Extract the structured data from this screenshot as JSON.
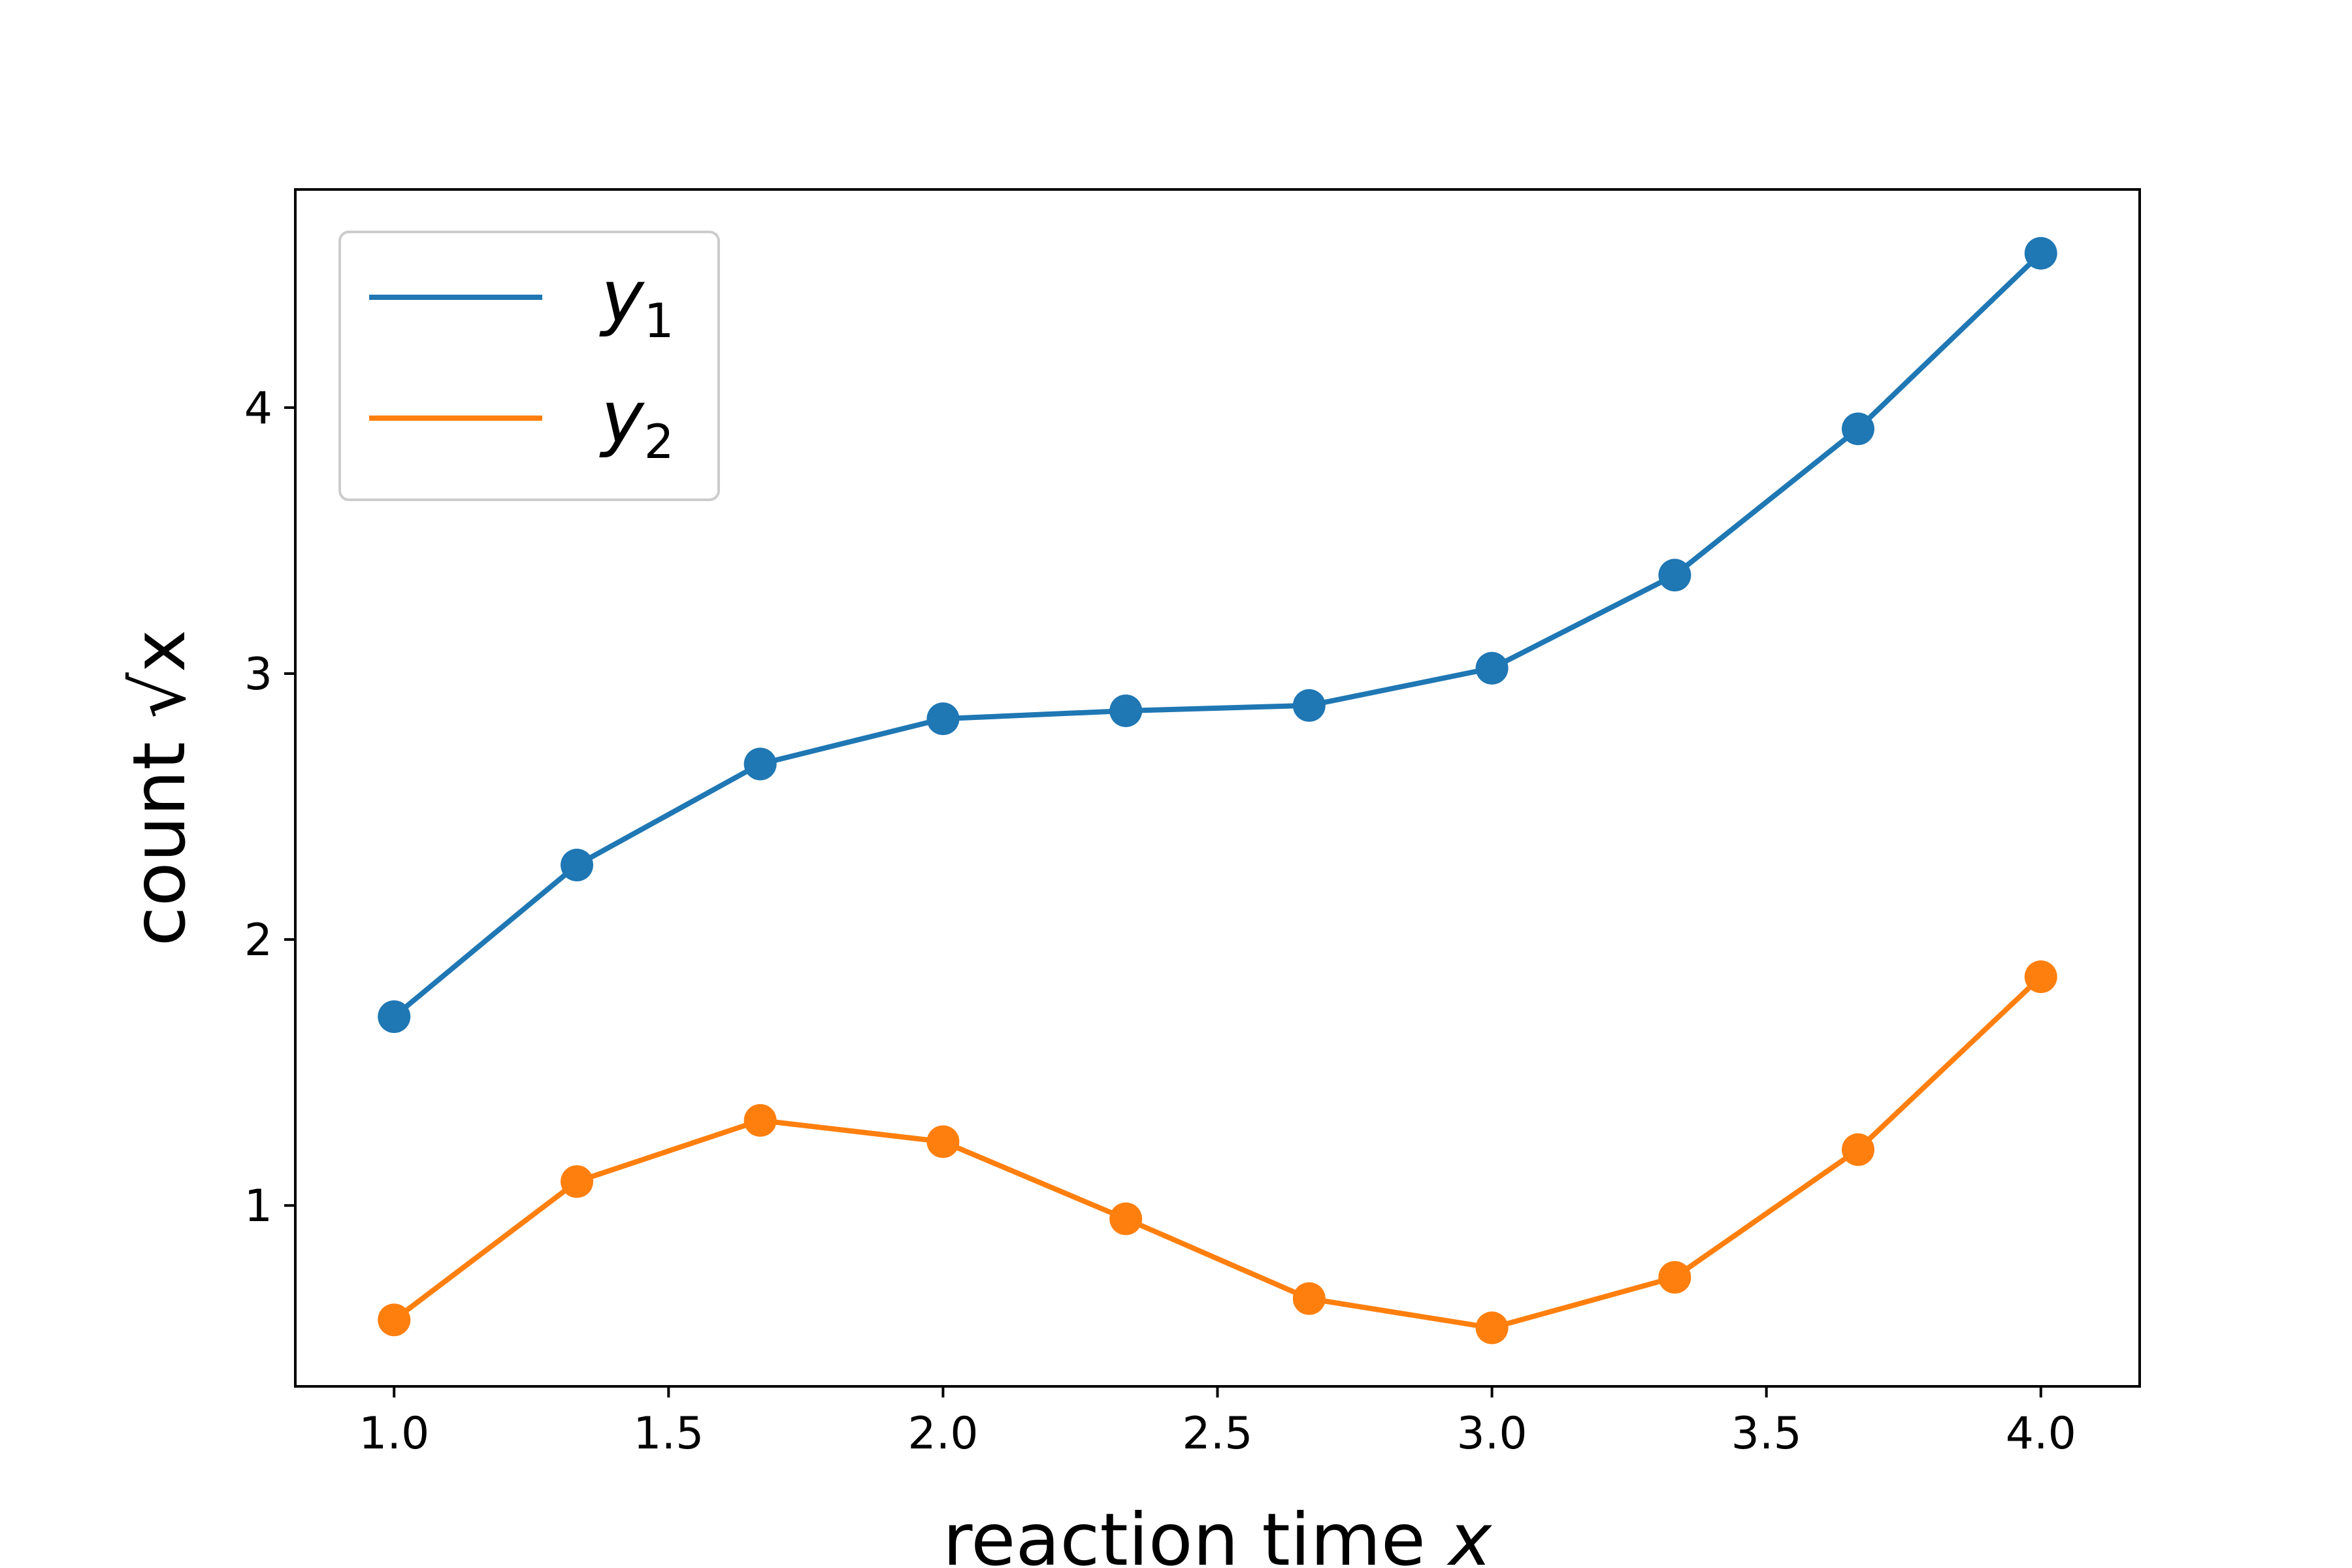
{
  "chart_data": {
    "type": "line",
    "xlabel": "reaction time",
    "xlabel_var": "x",
    "ylabel": "count",
    "ylabel_var": "√x",
    "xlim": [
      0.82,
      4.18
    ],
    "ylim": [
      0.32,
      4.82
    ],
    "xticks": [
      1.0,
      1.5,
      2.0,
      2.5,
      3.0,
      3.5,
      4.0
    ],
    "xtick_labels": [
      "1.0",
      "1.5",
      "2.0",
      "2.5",
      "3.0",
      "3.5",
      "4.0"
    ],
    "yticks": [
      1,
      2,
      3,
      4
    ],
    "ytick_labels": [
      "1",
      "2",
      "3",
      "4"
    ],
    "grid": false,
    "legend_position": "top-left",
    "x": [
      1.0,
      1.333,
      1.667,
      2.0,
      2.333,
      2.667,
      3.0,
      3.333,
      3.667,
      4.0
    ],
    "series": [
      {
        "name": "y",
        "name_sub": "1",
        "color": "#1f77b4",
        "values": [
          1.71,
          2.28,
          2.66,
          2.83,
          2.86,
          2.88,
          3.02,
          3.37,
          3.92,
          4.58
        ]
      },
      {
        "name": "y",
        "name_sub": "2",
        "color": "#ff7f0e",
        "values": [
          0.57,
          1.09,
          1.32,
          1.24,
          0.95,
          0.65,
          0.54,
          0.73,
          1.21,
          1.86
        ]
      }
    ]
  }
}
